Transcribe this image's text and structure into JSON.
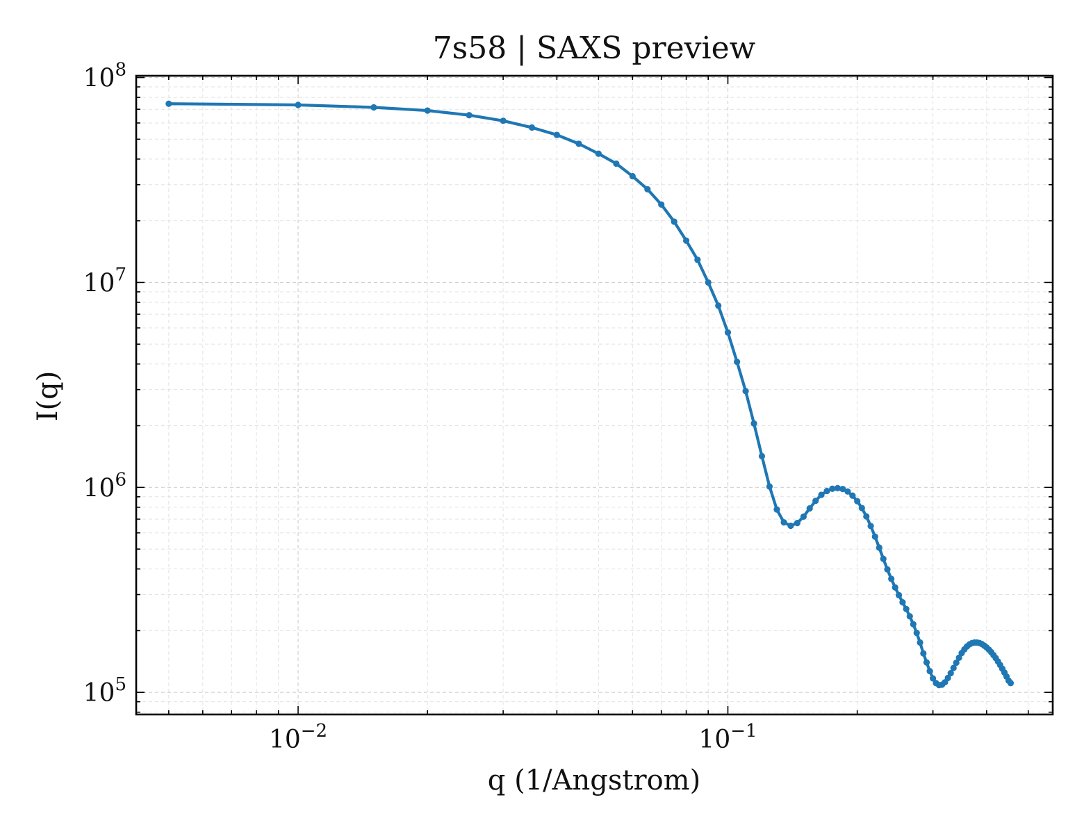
{
  "chart_data": {
    "type": "line",
    "title": "7s58 | SAXS preview",
    "xlabel": "q (1/Angstrom)",
    "ylabel": "I(q)",
    "xscale": "log",
    "yscale": "log",
    "xlim": [
      0.0042,
      0.57
    ],
    "ylim": [
      78000,
      102000000
    ],
    "grid": true,
    "legend": "none",
    "x_ticks": [
      {
        "value": 0.01,
        "base": "10",
        "exp": "−2"
      },
      {
        "value": 0.1,
        "base": "10",
        "exp": "−1"
      }
    ],
    "y_ticks": [
      {
        "value": 100000,
        "base": "10",
        "exp": "5"
      },
      {
        "value": 1000000,
        "base": "10",
        "exp": "6"
      },
      {
        "value": 10000000,
        "base": "10",
        "exp": "7"
      },
      {
        "value": 100000000,
        "base": "10",
        "exp": "8"
      }
    ],
    "series": [
      {
        "color": "#1f77b4",
        "points": [
          [
            0.005,
            74500000
          ],
          [
            0.01,
            73500000
          ],
          [
            0.015,
            71500000
          ],
          [
            0.02,
            69000000
          ],
          [
            0.025,
            65500000
          ],
          [
            0.03,
            61500000
          ],
          [
            0.035,
            57000000
          ],
          [
            0.04,
            52500000
          ],
          [
            0.045,
            47500000
          ],
          [
            0.05,
            42500000
          ],
          [
            0.055,
            38000000
          ],
          [
            0.06,
            33000000
          ],
          [
            0.065,
            28500000
          ],
          [
            0.07,
            24000000
          ],
          [
            0.075,
            19800000
          ],
          [
            0.08,
            16000000
          ],
          [
            0.085,
            12900000
          ],
          [
            0.09,
            10000000
          ],
          [
            0.095,
            7700000
          ],
          [
            0.1,
            5700000
          ],
          [
            0.105,
            4100000
          ],
          [
            0.11,
            2950000
          ],
          [
            0.115,
            2050000
          ],
          [
            0.12,
            1420000
          ],
          [
            0.125,
            1010000
          ],
          [
            0.13,
            780000
          ],
          [
            0.135,
            675000
          ],
          [
            0.14,
            650000
          ],
          [
            0.145,
            670000
          ],
          [
            0.15,
            720000
          ],
          [
            0.155,
            790000
          ],
          [
            0.16,
            860000
          ],
          [
            0.165,
            920000
          ],
          [
            0.17,
            960000
          ],
          [
            0.175,
            985000
          ],
          [
            0.18,
            992000
          ],
          [
            0.185,
            982000
          ],
          [
            0.19,
            955000
          ],
          [
            0.195,
            912000
          ],
          [
            0.2,
            857000
          ],
          [
            0.205,
            793000
          ],
          [
            0.21,
            722000
          ],
          [
            0.215,
            648000
          ],
          [
            0.22,
            575000
          ],
          [
            0.225,
            508000
          ],
          [
            0.23,
            448000
          ],
          [
            0.235,
            398000
          ],
          [
            0.24,
            358000
          ],
          [
            0.245,
            325000
          ],
          [
            0.25,
            298000
          ],
          [
            0.255,
            275000
          ],
          [
            0.26,
            255000
          ],
          [
            0.265,
            235000
          ],
          [
            0.27,
            215000
          ],
          [
            0.275,
            195000
          ],
          [
            0.28,
            175000
          ],
          [
            0.285,
            155000
          ],
          [
            0.29,
            140000
          ],
          [
            0.295,
            127000
          ],
          [
            0.3,
            117000
          ],
          [
            0.305,
            111000
          ],
          [
            0.31,
            108500
          ],
          [
            0.315,
            109000
          ],
          [
            0.32,
            112000
          ],
          [
            0.325,
            117500
          ],
          [
            0.33,
            124000
          ],
          [
            0.335,
            131500
          ],
          [
            0.34,
            139500
          ],
          [
            0.345,
            147500
          ],
          [
            0.35,
            155500
          ],
          [
            0.355,
            162000
          ],
          [
            0.36,
            167500
          ],
          [
            0.365,
            171500
          ],
          [
            0.37,
            174000
          ],
          [
            0.375,
            175000
          ],
          [
            0.38,
            175000
          ],
          [
            0.385,
            174000
          ],
          [
            0.39,
            172000
          ],
          [
            0.395,
            169000
          ],
          [
            0.4,
            165500
          ],
          [
            0.405,
            161500
          ],
          [
            0.41,
            157000
          ],
          [
            0.415,
            152000
          ],
          [
            0.42,
            147000
          ],
          [
            0.425,
            141500
          ],
          [
            0.43,
            136000
          ],
          [
            0.435,
            130500
          ],
          [
            0.44,
            125000
          ],
          [
            0.445,
            119500
          ],
          [
            0.45,
            114000
          ],
          [
            0.455,
            111000
          ]
        ]
      }
    ]
  }
}
